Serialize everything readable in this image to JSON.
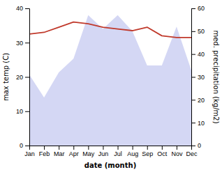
{
  "chart_data": {
    "type": "line",
    "xlabel": "date (month)",
    "ylabel": "max temp (C)",
    "y2label": "med. precipitation (kg/m2)",
    "categories": [
      "Jan",
      "Feb",
      "Mar",
      "Apr",
      "May",
      "Jun",
      "Jul",
      "Aug",
      "Sep",
      "Oct",
      "Nov",
      "Dec"
    ],
    "series": [
      {
        "type": "area",
        "axis": "y2",
        "color": "#c5caf0",
        "values": [
          31,
          21,
          32,
          38,
          57,
          51,
          57,
          50,
          35,
          35,
          52,
          33
        ]
      },
      {
        "type": "line",
        "color": "#c0392b",
        "values": [
          32.5,
          33.0,
          34.5,
          36.0,
          35.5,
          34.5,
          34.0,
          33.5,
          34.5,
          32.0,
          31.5,
          31.5
        ]
      }
    ],
    "ylim": [
      0,
      40
    ],
    "yticks": [
      0,
      10,
      20,
      30,
      40
    ],
    "y2lim": [
      0,
      60
    ],
    "y2ticks": [
      0,
      10,
      20,
      30,
      40,
      50,
      60
    ],
    "grid": false
  }
}
